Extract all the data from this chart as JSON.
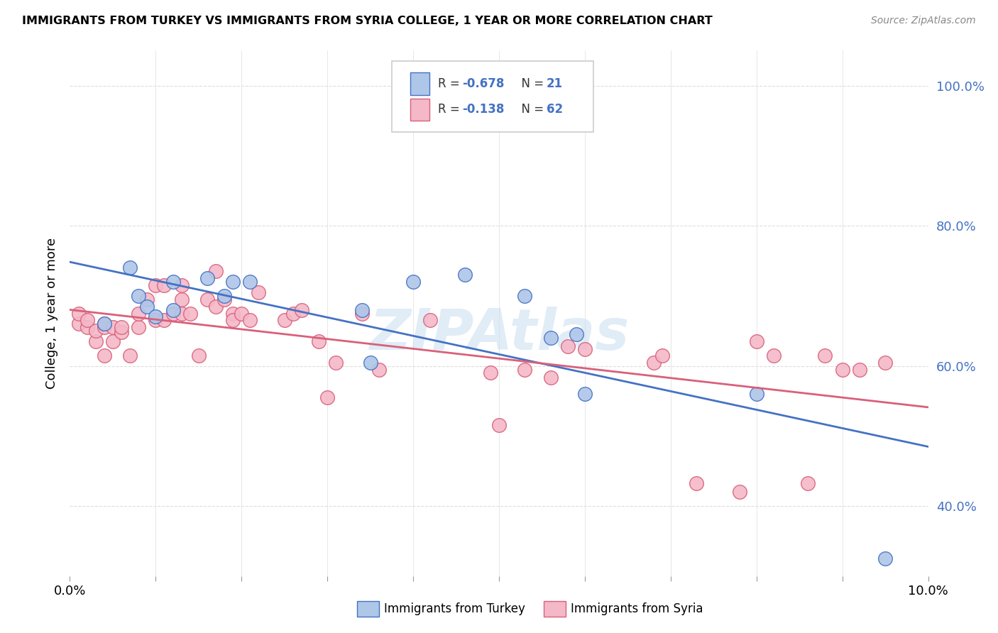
{
  "title": "IMMIGRANTS FROM TURKEY VS IMMIGRANTS FROM SYRIA COLLEGE, 1 YEAR OR MORE CORRELATION CHART",
  "source": "Source: ZipAtlas.com",
  "ylabel": "College, 1 year or more",
  "xlim": [
    0.0,
    0.1
  ],
  "ylim": [
    0.3,
    1.05
  ],
  "yticks": [
    0.4,
    0.6,
    0.8,
    1.0
  ],
  "ytick_labels": [
    "40.0%",
    "60.0%",
    "80.0%",
    "100.0%"
  ],
  "xticks": [
    0.0,
    0.01,
    0.02,
    0.03,
    0.04,
    0.05,
    0.06,
    0.07,
    0.08,
    0.09,
    0.1
  ],
  "xtick_labels": [
    "0.0%",
    "",
    "",
    "",
    "",
    "",
    "",
    "",
    "",
    "",
    "10.0%"
  ],
  "turkey_color": "#aec6e8",
  "syria_color": "#f4b8c8",
  "turkey_line_color": "#4472c4",
  "syria_line_color": "#d9607a",
  "background_color": "#ffffff",
  "watermark": "ZIPAtlas",
  "turkey_x": [
    0.004,
    0.007,
    0.008,
    0.009,
    0.01,
    0.012,
    0.012,
    0.016,
    0.018,
    0.019,
    0.021,
    0.034,
    0.035,
    0.04,
    0.046,
    0.053,
    0.056,
    0.059,
    0.06,
    0.08,
    0.095
  ],
  "turkey_y": [
    0.66,
    0.74,
    0.7,
    0.685,
    0.67,
    0.72,
    0.68,
    0.725,
    0.7,
    0.72,
    0.72,
    0.68,
    0.605,
    0.72,
    0.73,
    0.7,
    0.64,
    0.645,
    0.56,
    0.56,
    0.325
  ],
  "syria_x": [
    0.001,
    0.001,
    0.002,
    0.002,
    0.003,
    0.003,
    0.004,
    0.004,
    0.004,
    0.005,
    0.005,
    0.006,
    0.006,
    0.007,
    0.008,
    0.008,
    0.009,
    0.01,
    0.01,
    0.011,
    0.011,
    0.012,
    0.013,
    0.013,
    0.013,
    0.014,
    0.015,
    0.016,
    0.017,
    0.017,
    0.018,
    0.019,
    0.019,
    0.02,
    0.021,
    0.022,
    0.025,
    0.026,
    0.027,
    0.029,
    0.03,
    0.031,
    0.034,
    0.036,
    0.042,
    0.049,
    0.05,
    0.053,
    0.056,
    0.058,
    0.06,
    0.068,
    0.069,
    0.073,
    0.078,
    0.08,
    0.082,
    0.086,
    0.088,
    0.09,
    0.092,
    0.095
  ],
  "syria_y": [
    0.66,
    0.675,
    0.655,
    0.665,
    0.635,
    0.65,
    0.655,
    0.66,
    0.615,
    0.635,
    0.655,
    0.648,
    0.655,
    0.615,
    0.655,
    0.675,
    0.695,
    0.715,
    0.665,
    0.715,
    0.665,
    0.675,
    0.715,
    0.675,
    0.695,
    0.675,
    0.615,
    0.695,
    0.735,
    0.685,
    0.695,
    0.675,
    0.665,
    0.675,
    0.665,
    0.705,
    0.665,
    0.675,
    0.68,
    0.635,
    0.555,
    0.605,
    0.675,
    0.595,
    0.665,
    0.59,
    0.515,
    0.595,
    0.583,
    0.628,
    0.624,
    0.605,
    0.615,
    0.432,
    0.42,
    0.635,
    0.615,
    0.432,
    0.615,
    0.595,
    0.595,
    0.605
  ],
  "grid_color": "#dddddd"
}
